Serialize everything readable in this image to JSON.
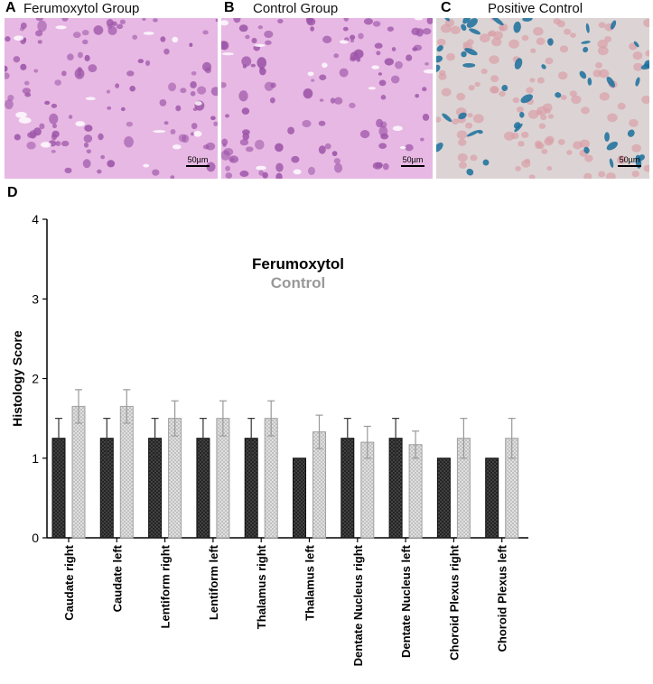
{
  "panels": [
    {
      "letter": "A",
      "title": "Ferumoxytol Group",
      "scale": "50µm"
    },
    {
      "letter": "B",
      "title": "Control Group",
      "scale": "50µm"
    },
    {
      "letter": "C",
      "title": "Positive Control",
      "scale": "50µm"
    }
  ],
  "colors": {
    "ferumoxytol": "#333333",
    "control": "#999999",
    "he_background": "#e7b8e3",
    "he_cell": "#9c55a8",
    "prussian_background": "#dcd4d4",
    "prussian_nuclei": "#d9a0a8",
    "prussian_blue": "#1a6e9c"
  },
  "chart_data": {
    "panel_letter": "D",
    "type": "bar",
    "ylabel": "Histology Score",
    "ylim": [
      0,
      4
    ],
    "yticks": [
      "0",
      "1",
      "2",
      "3",
      "4"
    ],
    "categories": [
      "Caudate right",
      "Caudate left",
      "Lentiform right",
      "Lentiform left",
      "Thalamus right",
      "Thalamus left",
      "Dentate Nucleus right",
      "Dentate Nucleus left",
      "Choroid Plexus right",
      "Choroid Plexus left"
    ],
    "series": [
      {
        "name": "Ferumoxytol",
        "values": [
          1.25,
          1.25,
          1.25,
          1.25,
          1.25,
          1.0,
          1.25,
          1.25,
          1.0,
          1.0
        ],
        "errors": [
          0.25,
          0.25,
          0.25,
          0.25,
          0.25,
          0,
          0.25,
          0.25,
          0,
          0
        ]
      },
      {
        "name": "Control",
        "values": [
          1.65,
          1.65,
          1.5,
          1.5,
          1.5,
          1.33,
          1.2,
          1.17,
          1.25,
          1.25
        ],
        "errors": [
          0.21,
          0.21,
          0.22,
          0.22,
          0.22,
          0.21,
          0.2,
          0.17,
          0.25,
          0.25
        ]
      }
    ],
    "legend": [
      "Ferumoxytol",
      "Control"
    ],
    "legend_position": "top-center"
  }
}
